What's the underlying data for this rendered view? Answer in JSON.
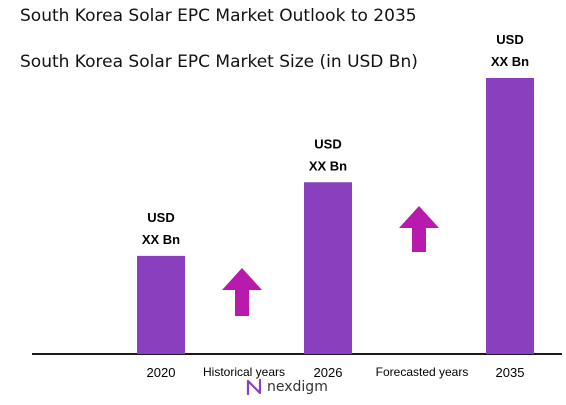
{
  "title": "South Korea Solar EPC Market Outlook to 2035",
  "subtitle": "South Korea Solar EPC Market Size (in USD Bn)",
  "logo_text": "nexdigm",
  "chart_data": {
    "type": "bar",
    "categories": [
      "2020",
      "2026",
      "2035"
    ],
    "values": [
      3.2,
      5.6,
      9.0
    ],
    "value_labels": [
      [
        "USD",
        "XX Bn"
      ],
      [
        "USD",
        "XX Bn"
      ],
      [
        "USD",
        "XX Bn"
      ]
    ],
    "ylim": [
      0,
      9.0
    ],
    "grid": false,
    "period_labels": [
      "Historical years",
      "Forecasted years"
    ],
    "colors": {
      "bar": "#8A3FBE",
      "arrow": "#B81AAE",
      "axis": "#1a1a1a"
    }
  }
}
